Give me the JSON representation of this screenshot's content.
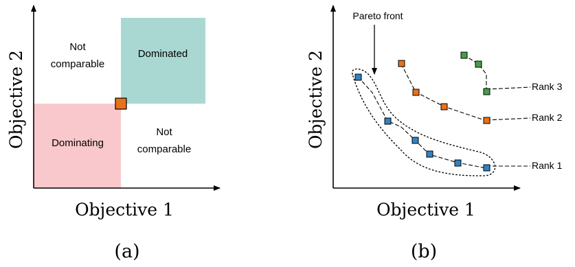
{
  "colors": {
    "dominating_fill": "#f8c8cc",
    "dominated_fill": "#a9d8d2",
    "point_orange": "#e8711c",
    "point_blue": "#2f83c4",
    "point_green": "#43a047",
    "axis": "#000000"
  },
  "panel_a": {
    "x_label": "Objective 1",
    "y_label": "Objective 2",
    "caption": "(a)",
    "regions": {
      "dominating": "Dominating",
      "dominated": "Dominated",
      "not_comparable_top": [
        "Not",
        "comparable"
      ],
      "not_comparable_bottom": [
        "Not",
        "comparable"
      ]
    },
    "reference_point": {
      "color": "orange",
      "icon": "square-marker"
    }
  },
  "panel_b": {
    "x_label": "Objective 1",
    "y_label": "Objective 2",
    "caption": "(b)",
    "pareto_label": "Pareto front",
    "rank_labels": [
      "Rank 1",
      "Rank 2",
      "Rank 3"
    ],
    "legend_icons": [
      "arrow-down-icon",
      "dotted-envelope-icon"
    ]
  }
}
